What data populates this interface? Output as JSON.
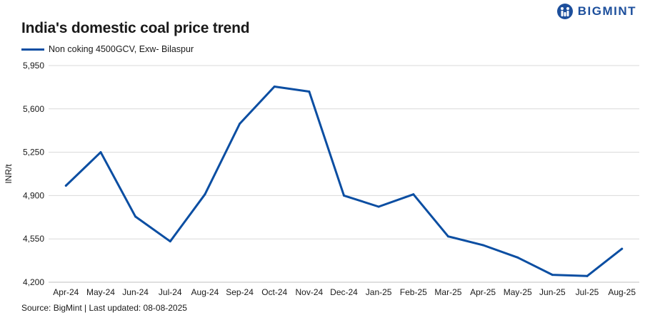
{
  "brand": {
    "name": "BIGMINT",
    "color": "#1d4f9c"
  },
  "title": "India's domestic coal price trend",
  "source": "Source: BigMint | Last updated: 08-08-2025",
  "chart_data": {
    "type": "line",
    "title": "India's domestic coal price trend",
    "ylabel": "INR/t",
    "xlabel": "",
    "ylim": [
      4200,
      5950
    ],
    "yticks": [
      4200,
      4550,
      4900,
      5250,
      5600,
      5950
    ],
    "ytick_labels": [
      "4,200",
      "4,550",
      "4,900",
      "5,250",
      "5,600",
      "5,950"
    ],
    "grid": true,
    "legend_position": "top-left",
    "categories": [
      "Apr-24",
      "May-24",
      "Jun-24",
      "Jul-24",
      "Aug-24",
      "Sep-24",
      "Oct-24",
      "Nov-24",
      "Dec-24",
      "Jan-25",
      "Feb-25",
      "Mar-25",
      "Apr-25",
      "May-25",
      "Jun-25",
      "Jul-25",
      "Aug-25"
    ],
    "series": [
      {
        "name": "Non coking 4500GCV, Exw- Bilaspur",
        "color": "#0b4ea2",
        "values": [
          4980,
          5250,
          4730,
          4530,
          4910,
          5480,
          5780,
          5740,
          4900,
          4810,
          4910,
          4570,
          4500,
          4400,
          4260,
          4250,
          4470
        ]
      }
    ]
  }
}
